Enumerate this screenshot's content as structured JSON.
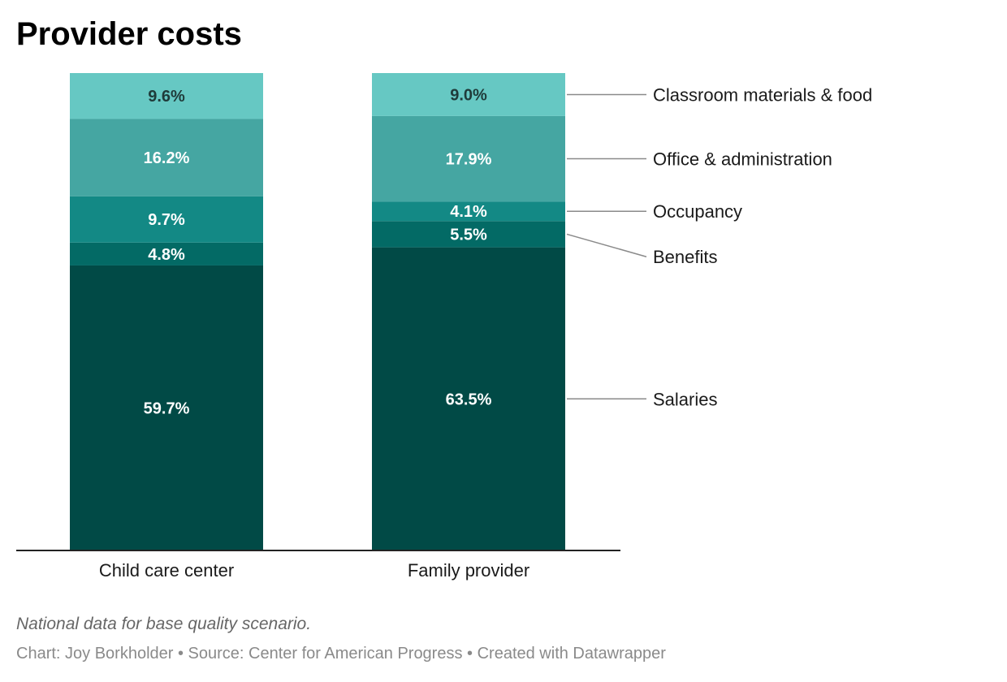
{
  "chart_data": {
    "type": "bar",
    "stacked": true,
    "title": "Provider costs",
    "categories": [
      "Child care center",
      "Family provider"
    ],
    "series": [
      {
        "name": "Salaries",
        "values": [
          59.7,
          63.5
        ],
        "color": "#014a46"
      },
      {
        "name": "Benefits",
        "values": [
          4.8,
          5.5
        ],
        "color": "#036a65"
      },
      {
        "name": "Occupancy",
        "values": [
          9.7,
          4.1
        ],
        "color": "#138985"
      },
      {
        "name": "Office & administration",
        "values": [
          16.2,
          17.9
        ],
        "color": "#45a6a2"
      },
      {
        "name": "Classroom materials & food",
        "values": [
          9.6,
          9.0
        ],
        "color": "#66c8c3"
      }
    ],
    "value_suffix": "%",
    "ylim": [
      0,
      100
    ],
    "legend": "right, direct labels",
    "xlabel": "",
    "ylabel": ""
  },
  "footer": {
    "note": "National data for base quality scenario.",
    "credit_chart": "Chart: Joy Borkholder",
    "credit_source": "Source: Center for American Progress",
    "credit_tool": "Created with Datawrapper",
    "separator": " • "
  }
}
